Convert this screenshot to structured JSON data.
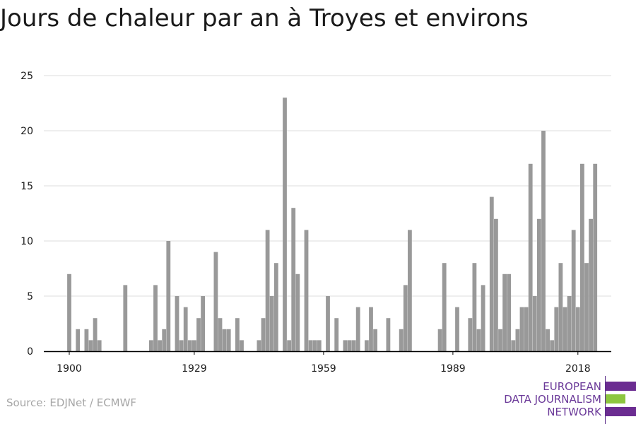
{
  "title": "Jours de chaleur par an à Troyes et environs",
  "source": "Source: EDJNet / ECMWF",
  "logo": {
    "lines": [
      "EUROPEAN",
      "DATA JOURNALISM",
      "NETWORK"
    ],
    "colors": {
      "purple": "#6b2c91",
      "green": "#8dc63f"
    }
  },
  "colors": {
    "bar": "#999999",
    "grid": "#dddddd",
    "axis": "#000000",
    "text": "#1a1a1a"
  },
  "chart_data": {
    "type": "bar",
    "title": "Jours de chaleur par an à Troyes et environs",
    "xlabel": "",
    "ylabel": "",
    "ylim": [
      0,
      25
    ],
    "yticks": [
      0,
      5,
      10,
      15,
      20,
      25
    ],
    "xticks": [
      1900,
      1929,
      1959,
      1989,
      2018
    ],
    "grid": true,
    "x_start": 1900,
    "values": [
      7,
      0,
      2,
      0,
      2,
      1,
      3,
      1,
      0,
      0,
      0,
      0,
      0,
      6,
      0,
      0,
      0,
      0,
      0,
      1,
      6,
      1,
      2,
      10,
      0,
      5,
      1,
      4,
      1,
      1,
      3,
      5,
      0,
      0,
      9,
      3,
      2,
      2,
      0,
      3,
      1,
      0,
      0,
      0,
      1,
      3,
      11,
      5,
      8,
      0,
      23,
      1,
      13,
      7,
      0,
      11,
      1,
      1,
      1,
      0,
      5,
      0,
      3,
      0,
      1,
      1,
      1,
      4,
      0,
      1,
      4,
      2,
      0,
      0,
      3,
      0,
      0,
      2,
      6,
      11,
      0,
      0,
      0,
      0,
      0,
      0,
      2,
      8,
      0,
      0,
      4,
      0,
      0,
      3,
      8,
      2,
      6,
      0,
      14,
      12,
      2,
      7,
      7,
      1,
      2,
      4,
      4,
      17,
      5,
      12,
      20,
      2,
      1,
      4,
      8,
      4,
      5,
      11,
      4,
      17,
      8,
      12,
      17
    ]
  }
}
